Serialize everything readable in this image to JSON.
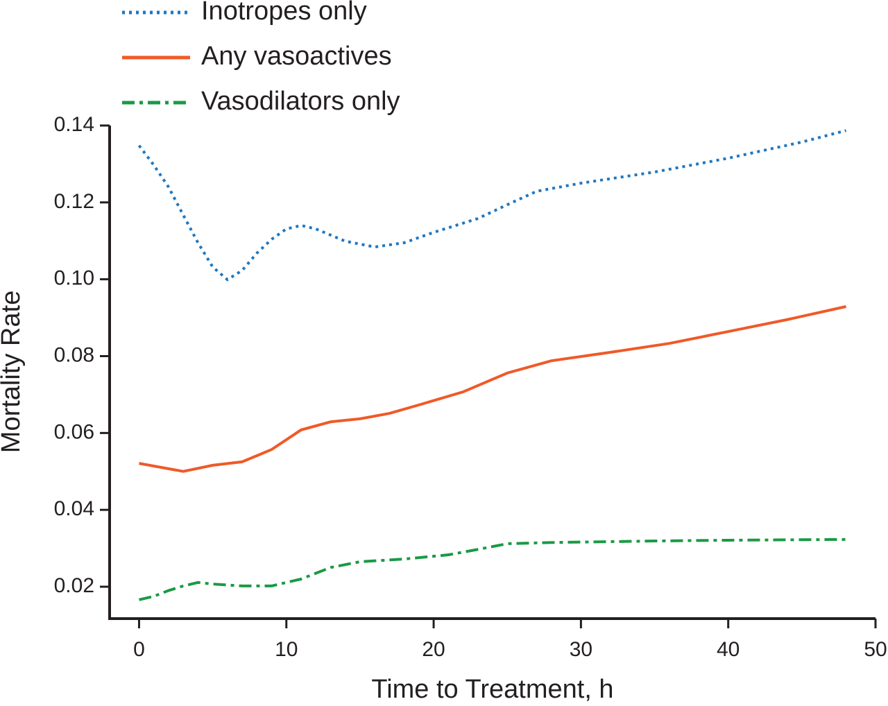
{
  "chart_data": {
    "type": "line",
    "x_label": "Time to Treatment, h",
    "y_label": "Mortality Rate",
    "xlim": [
      -2,
      50
    ],
    "ylim": [
      0.0117,
      0.14
    ],
    "xticks": [
      0,
      10,
      20,
      30,
      40,
      50
    ],
    "yticks": [
      0.02,
      0.04,
      0.06,
      0.08,
      {
        "value": 0.1,
        "label": "0.10"
      },
      0.12,
      0.14
    ],
    "series": [
      {
        "name": "Inotropes only",
        "color": "#1f77c0",
        "style": "dotted",
        "x": [
          0,
          1,
          2,
          3,
          4,
          5,
          6,
          7,
          8,
          9,
          10,
          11,
          12,
          14,
          16,
          18,
          20,
          23,
          25,
          27,
          30,
          35,
          40,
          45,
          48
        ],
        "values": [
          0.1348,
          0.1297,
          0.124,
          0.1167,
          0.1095,
          0.1032,
          0.0999,
          0.1023,
          0.1068,
          0.1104,
          0.1131,
          0.114,
          0.1131,
          0.1099,
          0.1084,
          0.1095,
          0.1122,
          0.1158,
          0.1194,
          0.1229,
          0.125,
          0.1279,
          0.1315,
          0.1357,
          0.1387
        ]
      },
      {
        "name": "Any vasoactives",
        "color": "#ef5a28",
        "style": "solid",
        "x": [
          0,
          2,
          3,
          5,
          7,
          9,
          11,
          13,
          15,
          17,
          19,
          22,
          25,
          28,
          32,
          36,
          40,
          44,
          48
        ],
        "values": [
          0.0521,
          0.0507,
          0.05,
          0.0516,
          0.0525,
          0.0557,
          0.0608,
          0.0629,
          0.0637,
          0.0651,
          0.0673,
          0.0707,
          0.0756,
          0.0788,
          0.081,
          0.0833,
          0.0864,
          0.0895,
          0.0929
        ]
      },
      {
        "name": "Vasodilators only",
        "color": "#1a9a44",
        "style": "dashdot",
        "x": [
          0,
          1,
          2,
          3,
          4,
          5,
          7,
          9,
          11,
          13,
          15,
          18,
          21,
          23,
          25,
          28,
          35,
          40,
          48
        ],
        "values": [
          0.0166,
          0.0175,
          0.019,
          0.0202,
          0.0211,
          0.0207,
          0.0202,
          0.0202,
          0.022,
          0.025,
          0.0265,
          0.0272,
          0.0283,
          0.0297,
          0.0312,
          0.0315,
          0.0319,
          0.0321,
          0.0323
        ]
      }
    ]
  }
}
